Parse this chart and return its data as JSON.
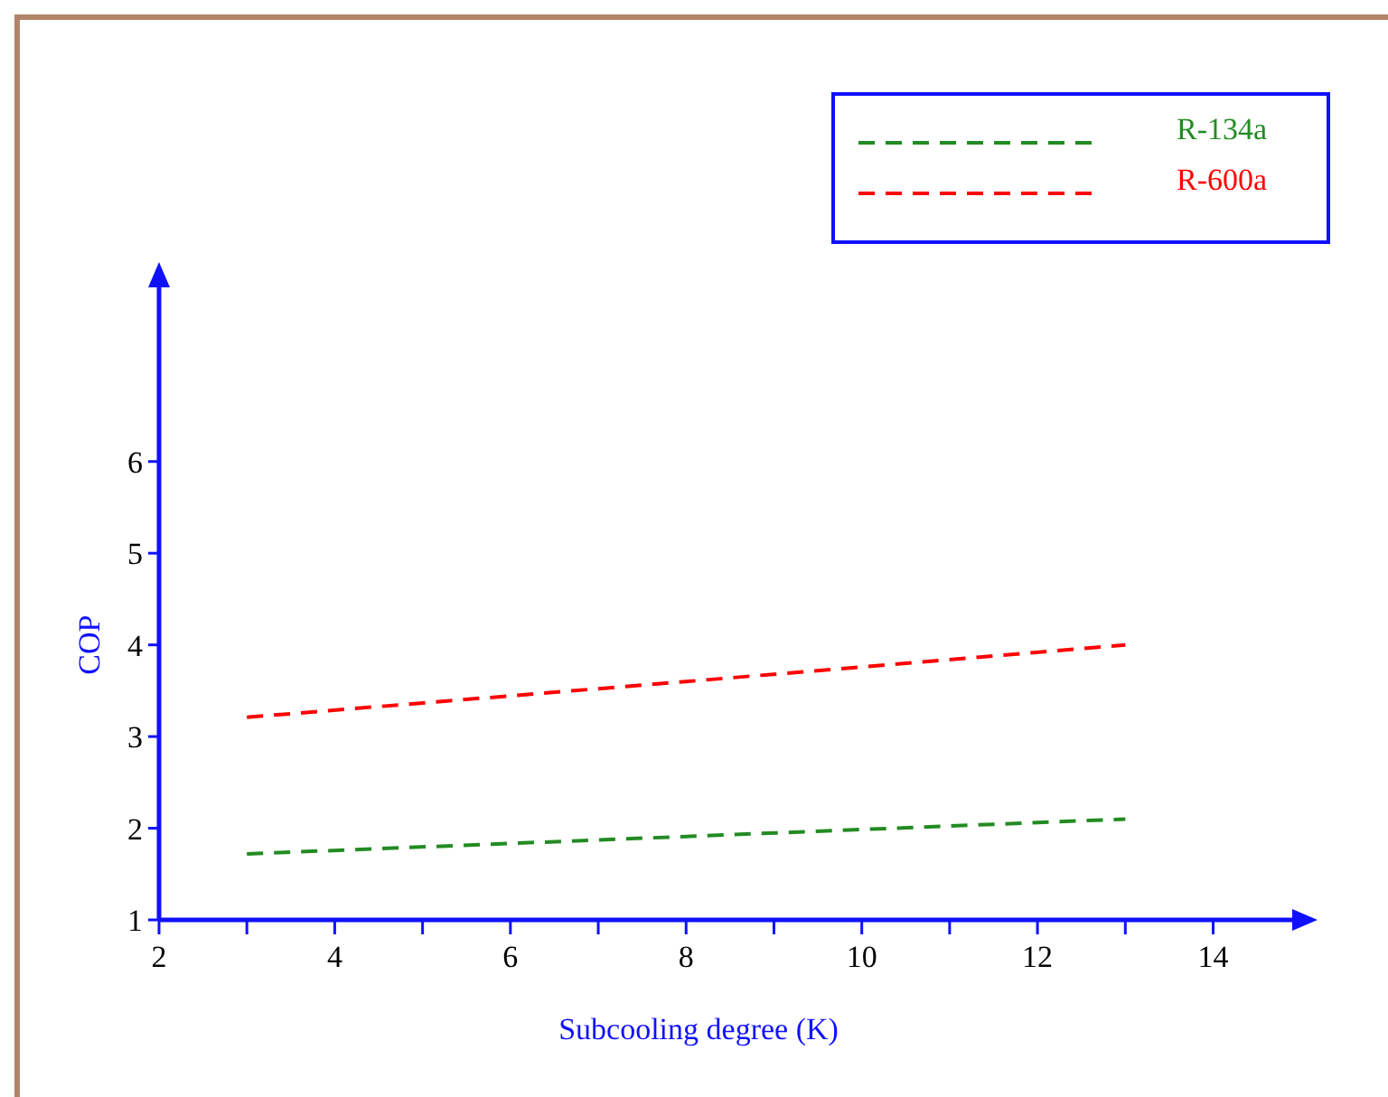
{
  "chart_data": {
    "type": "line",
    "xlabel": "Subcooling degree (K)",
    "ylabel": "COP",
    "xlim": [
      2,
      14.9
    ],
    "ylim": [
      1,
      7.9
    ],
    "xticks": [
      2,
      {
        "value": 3,
        "label": null
      },
      4,
      {
        "value": 5,
        "label": null
      },
      6,
      {
        "value": 7,
        "label": null
      },
      8,
      {
        "value": 9,
        "label": null
      },
      10,
      {
        "value": 11,
        "label": null
      },
      12,
      {
        "value": 13,
        "label": null
      },
      14
    ],
    "yticks": [
      1,
      2,
      3,
      4,
      5,
      6
    ],
    "x": [
      3,
      8,
      13
    ],
    "series": [
      {
        "name": "R-134a",
        "color": "#228b22",
        "values": [
          1.72,
          1.91,
          2.1
        ],
        "line_style": "dashed"
      },
      {
        "name": "R-600a",
        "color": "#ff0000",
        "values": [
          3.21,
          3.6,
          4.0
        ],
        "line_style": "dashed"
      }
    ],
    "grid": false,
    "legend": "top right",
    "marker": "none"
  }
}
